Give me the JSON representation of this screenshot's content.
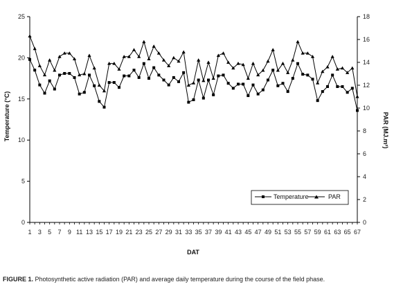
{
  "chart_data": {
    "type": "line",
    "xlabel": "DAT",
    "ylabel_left": "Temperature (°C)",
    "ylabel_right": "PAR (MJ.m²)",
    "ylim_left": [
      0,
      25
    ],
    "ylim_right": [
      0,
      18
    ],
    "yticks_left": [
      "0",
      "5",
      "10",
      "15",
      "20",
      "25"
    ],
    "yticks_right": [
      "0",
      "2",
      "4",
      "6",
      "8",
      "10",
      "12",
      "14",
      "16",
      "18"
    ],
    "xticks": [
      "1",
      "3",
      "5",
      "7",
      "9",
      "11",
      "13",
      "15",
      "17",
      "19",
      "21",
      "23",
      "25",
      "27",
      "29",
      "31",
      "33",
      "35",
      "37",
      "39",
      "41",
      "43",
      "45",
      "47",
      "49",
      "51",
      "53",
      "55",
      "57",
      "59",
      "61",
      "63",
      "65",
      "67"
    ],
    "x": [
      1,
      2,
      3,
      4,
      5,
      6,
      7,
      8,
      9,
      10,
      11,
      12,
      13,
      14,
      15,
      16,
      17,
      18,
      19,
      20,
      21,
      22,
      23,
      24,
      25,
      26,
      27,
      28,
      29,
      30,
      31,
      32,
      33,
      34,
      35,
      36,
      37,
      38,
      39,
      40,
      41,
      42,
      43,
      44,
      45,
      46,
      47,
      48,
      49,
      50,
      51,
      52,
      53,
      54,
      55,
      56,
      57,
      58,
      59,
      60,
      61,
      62,
      63,
      64,
      65,
      66,
      67
    ],
    "grid": false,
    "legend_position": "bottom-right",
    "series": [
      {
        "name": "Temperature",
        "axis": "left",
        "marker": "square",
        "values": [
          19.8,
          18.5,
          16.7,
          15.7,
          17.2,
          16.2,
          17.9,
          18.1,
          18.1,
          17.6,
          15.6,
          15.8,
          17.9,
          16.6,
          14.7,
          14.0,
          17.0,
          17.0,
          16.4,
          17.8,
          17.8,
          18.5,
          17.6,
          19.3,
          17.5,
          18.8,
          17.9,
          17.3,
          16.7,
          17.6,
          17.1,
          18.2,
          14.6,
          14.9,
          17.3,
          15.1,
          17.3,
          15.5,
          17.8,
          17.9,
          16.9,
          16.3,
          16.8,
          16.8,
          15.4,
          16.7,
          15.6,
          16.1,
          17.3,
          18.5,
          16.6,
          16.9,
          15.9,
          17.5,
          19.3,
          18.0,
          17.9,
          17.4,
          14.8,
          15.9,
          16.5,
          17.9,
          16.5,
          16.5,
          15.8,
          16.3,
          13.6
        ]
      },
      {
        "name": "PAR",
        "axis": "right",
        "marker": "triangle",
        "values": [
          16.3,
          15.2,
          13.7,
          12.9,
          14.2,
          13.3,
          14.5,
          14.8,
          14.8,
          14.3,
          12.9,
          13.0,
          14.6,
          13.5,
          12.0,
          11.5,
          13.9,
          13.9,
          13.4,
          14.5,
          14.5,
          15.1,
          14.5,
          15.8,
          14.3,
          15.4,
          14.8,
          14.2,
          13.7,
          14.4,
          14.1,
          14.9,
          12.0,
          12.2,
          14.2,
          12.4,
          14.0,
          12.6,
          14.6,
          14.8,
          14.0,
          13.5,
          13.9,
          13.8,
          12.6,
          13.9,
          12.9,
          13.3,
          14.1,
          15.1,
          13.3,
          13.9,
          13.1,
          14.2,
          15.8,
          14.8,
          14.8,
          14.5,
          12.2,
          13.2,
          13.6,
          14.5,
          13.4,
          13.5,
          13.1,
          13.5,
          11.0
        ]
      }
    ]
  },
  "caption": {
    "label": "FIGURE 1.",
    "text": " Photosynthetic active radiation (PAR) and average daily temperature during the course of the field phase."
  },
  "colors": {
    "line": "#000000",
    "axis": "#000000"
  }
}
